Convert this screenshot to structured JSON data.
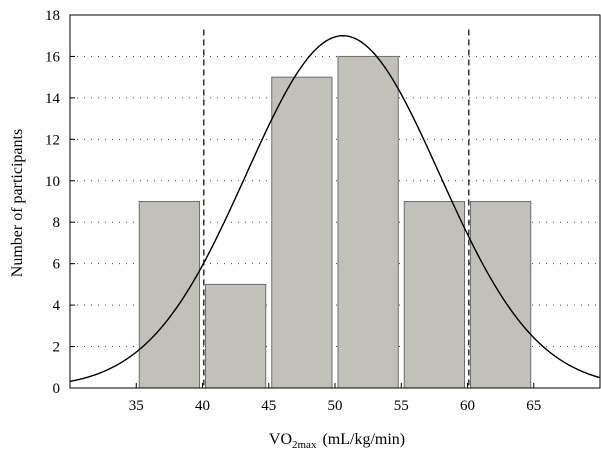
{
  "chart_data": {
    "type": "bar",
    "title": "",
    "xlabel": {
      "main": "VO",
      "sub": "2max",
      "rest": "(mL/kg/min)"
    },
    "ylabel": "Number of participants",
    "xlim": [
      30,
      70
    ],
    "ylim": [
      0,
      18
    ],
    "x_ticks": [
      35,
      40,
      45,
      50,
      55,
      60,
      65
    ],
    "y_ticks": [
      0,
      2,
      4,
      6,
      8,
      10,
      12,
      14,
      16,
      18
    ],
    "grid": "dotted horizontal",
    "bins": [
      {
        "from": 35,
        "to": 40,
        "count": 9
      },
      {
        "from": 40,
        "to": 45,
        "count": 5
      },
      {
        "from": 45,
        "to": 50,
        "count": 15
      },
      {
        "from": 50,
        "to": 55,
        "count": 16
      },
      {
        "from": 55,
        "to": 60,
        "count": 9
      },
      {
        "from": 60,
        "to": 65,
        "count": 9
      }
    ],
    "normal_curve": {
      "mean": 50.6,
      "sd": 7.3,
      "peak": 17.0
    },
    "reference_lines": [
      40.1,
      60.1
    ],
    "colors": {
      "bar_fill": "#c2c1b9",
      "bar_edge": "#6e6e6e",
      "curve": "#000000"
    }
  }
}
